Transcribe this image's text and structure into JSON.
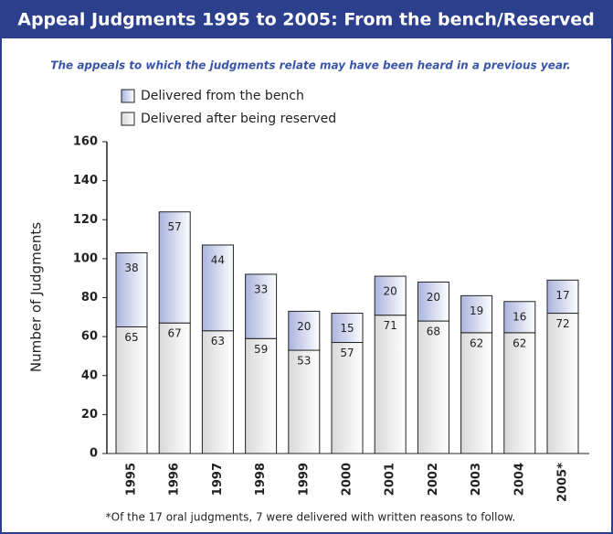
{
  "chart_data": {
    "type": "stacked_bar",
    "title": "Appeal Judgments 1995 to 2005: From the bench/Reserved",
    "subtitle": "The appeals to which the judgments relate may have been heard in a previous year.",
    "y_label": "Number of Judgments",
    "footnote": "*Of the 17 oral judgments, 7 were delivered with written reasons to follow.",
    "categories": [
      "1995",
      "1996",
      "1997",
      "1998",
      "1999",
      "2000",
      "2001",
      "2002",
      "2003",
      "2004",
      "2005*"
    ],
    "series": [
      {
        "name": "Delivered after being reserved",
        "color": "#d9d9d9",
        "values": [
          65,
          67,
          63,
          59,
          53,
          57,
          71,
          68,
          62,
          62,
          72
        ]
      },
      {
        "name": "Delivered from the bench",
        "color": "#aab3de",
        "values": [
          38,
          57,
          44,
          33,
          20,
          15,
          20,
          20,
          19,
          16,
          17
        ]
      }
    ],
    "ylim": [
      0,
      160
    ],
    "yticks": [
      0,
      20,
      40,
      60,
      80,
      100,
      120,
      140,
      160
    ],
    "grid": false
  }
}
